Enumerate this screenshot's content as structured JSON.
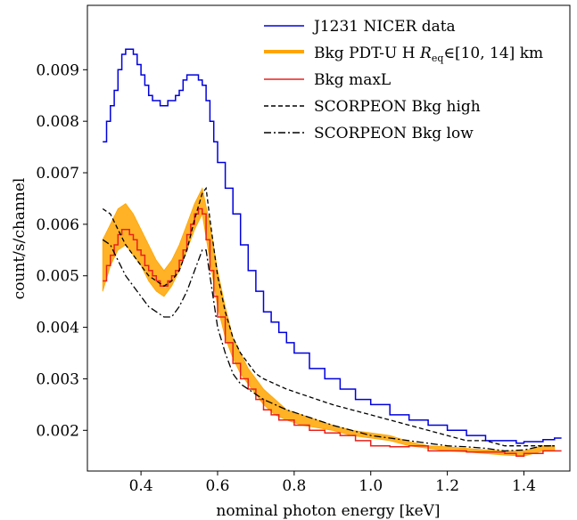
{
  "chart_data": {
    "type": "line",
    "xlabel": "nominal photon energy [keV]",
    "ylabel": "count/s/channel",
    "xlim": [
      0.26,
      1.52
    ],
    "ylim": [
      0.00121,
      0.01025
    ],
    "xticks": [
      0.4,
      0.6,
      0.8,
      1.0,
      1.2,
      1.4
    ],
    "xtick_labels": [
      "0.4",
      "0.6",
      "0.8",
      "1.0",
      "1.2",
      "1.4"
    ],
    "yticks": [
      0.002,
      0.003,
      0.004,
      0.005,
      0.006,
      0.007,
      0.008,
      0.009
    ],
    "ytick_labels": [
      "0.002",
      "0.003",
      "0.004",
      "0.005",
      "0.006",
      "0.007",
      "0.008",
      "0.009"
    ],
    "grid": false,
    "legend_position": "top-right",
    "series": [
      {
        "name": "J1231 NICER data",
        "color": "#0000dd",
        "style": "steps",
        "x": [
          0.3,
          0.31,
          0.32,
          0.33,
          0.34,
          0.35,
          0.36,
          0.37,
          0.38,
          0.39,
          0.4,
          0.41,
          0.42,
          0.43,
          0.44,
          0.45,
          0.46,
          0.47,
          0.48,
          0.49,
          0.5,
          0.51,
          0.52,
          0.53,
          0.54,
          0.55,
          0.56,
          0.57,
          0.58,
          0.59,
          0.6,
          0.62,
          0.64,
          0.66,
          0.68,
          0.7,
          0.72,
          0.74,
          0.76,
          0.78,
          0.8,
          0.84,
          0.88,
          0.92,
          0.96,
          1.0,
          1.05,
          1.1,
          1.15,
          1.2,
          1.25,
          1.3,
          1.35,
          1.38,
          1.4,
          1.45,
          1.48
        ],
        "y": [
          0.0076,
          0.008,
          0.0083,
          0.0086,
          0.009,
          0.0093,
          0.0094,
          0.0094,
          0.0093,
          0.0091,
          0.0089,
          0.0087,
          0.0085,
          0.0084,
          0.0084,
          0.0083,
          0.0083,
          0.0084,
          0.0084,
          0.0085,
          0.0086,
          0.0088,
          0.0089,
          0.0089,
          0.0089,
          0.0088,
          0.0087,
          0.0084,
          0.008,
          0.0076,
          0.0072,
          0.0067,
          0.0062,
          0.0056,
          0.0051,
          0.0047,
          0.0043,
          0.0041,
          0.0039,
          0.0037,
          0.0035,
          0.0032,
          0.003,
          0.0028,
          0.0026,
          0.0025,
          0.0023,
          0.0022,
          0.0021,
          0.002,
          0.0019,
          0.0018,
          0.0018,
          0.00175,
          0.00178,
          0.00182,
          0.00185
        ]
      },
      {
        "name": "Bkg PDT-U H R_eq∈[10, 14] km",
        "color": "#ffa500",
        "style": "band",
        "x": [
          0.3,
          0.32,
          0.34,
          0.36,
          0.38,
          0.4,
          0.42,
          0.44,
          0.46,
          0.48,
          0.5,
          0.52,
          0.54,
          0.56,
          0.58,
          0.6,
          0.62,
          0.64,
          0.66,
          0.68,
          0.7,
          0.72,
          0.75,
          0.78,
          0.82,
          0.86,
          0.9,
          0.95,
          1.0,
          1.05,
          1.1,
          1.15,
          1.2,
          1.25,
          1.3,
          1.35,
          1.4,
          1.45,
          1.48
        ],
        "y_low": [
          0.0047,
          0.0052,
          0.0055,
          0.0056,
          0.0054,
          0.0052,
          0.0049,
          0.0047,
          0.0046,
          0.0048,
          0.0051,
          0.0055,
          0.0059,
          0.0062,
          0.0053,
          0.0044,
          0.0038,
          0.0034,
          0.0031,
          0.0029,
          0.0027,
          0.0025,
          0.0023,
          0.0022,
          0.0021,
          0.00205,
          0.002,
          0.0019,
          0.00185,
          0.0018,
          0.0017,
          0.00165,
          0.0016,
          0.00158,
          0.00155,
          0.00152,
          0.0015,
          0.0016,
          0.0016
        ],
        "y_high": [
          0.0057,
          0.006,
          0.0063,
          0.0064,
          0.0062,
          0.0059,
          0.0056,
          0.0053,
          0.0051,
          0.0053,
          0.0056,
          0.006,
          0.0064,
          0.0067,
          0.006,
          0.0051,
          0.0044,
          0.0038,
          0.0035,
          0.0032,
          0.003,
          0.0028,
          0.0026,
          0.0024,
          0.0023,
          0.0022,
          0.0021,
          0.002,
          0.00195,
          0.0019,
          0.00178,
          0.0017,
          0.00168,
          0.00165,
          0.00162,
          0.0016,
          0.0016,
          0.0017,
          0.0017
        ]
      },
      {
        "name": "Bkg maxL",
        "color": "#e8211b",
        "style": "steps",
        "x": [
          0.3,
          0.31,
          0.32,
          0.33,
          0.34,
          0.35,
          0.36,
          0.37,
          0.38,
          0.39,
          0.4,
          0.41,
          0.42,
          0.43,
          0.44,
          0.45,
          0.46,
          0.47,
          0.48,
          0.49,
          0.5,
          0.51,
          0.52,
          0.53,
          0.54,
          0.55,
          0.56,
          0.57,
          0.58,
          0.59,
          0.6,
          0.62,
          0.64,
          0.66,
          0.68,
          0.7,
          0.72,
          0.74,
          0.76,
          0.78,
          0.8,
          0.84,
          0.88,
          0.92,
          0.96,
          1.0,
          1.05,
          1.1,
          1.15,
          1.2,
          1.25,
          1.3,
          1.35,
          1.38,
          1.4,
          1.45,
          1.48
        ],
        "y": [
          0.0049,
          0.0052,
          0.0054,
          0.0056,
          0.0058,
          0.0059,
          0.0059,
          0.0058,
          0.0057,
          0.0055,
          0.0054,
          0.0052,
          0.0051,
          0.005,
          0.0049,
          0.0048,
          0.0048,
          0.0049,
          0.005,
          0.0051,
          0.0053,
          0.0055,
          0.0058,
          0.006,
          0.0062,
          0.0063,
          0.0062,
          0.0057,
          0.0051,
          0.0046,
          0.0042,
          0.0037,
          0.0033,
          0.003,
          0.0028,
          0.0026,
          0.0024,
          0.0023,
          0.0022,
          0.0022,
          0.0021,
          0.002,
          0.00195,
          0.0019,
          0.0018,
          0.0017,
          0.00168,
          0.0017,
          0.0016,
          0.0016,
          0.00158,
          0.00158,
          0.00155,
          0.0015,
          0.00155,
          0.0016,
          0.0016
        ]
      },
      {
        "name": "SCORPEON Bkg high",
        "color": "#000000",
        "style": "dashed",
        "x": [
          0.3,
          0.32,
          0.34,
          0.36,
          0.38,
          0.4,
          0.42,
          0.44,
          0.46,
          0.48,
          0.5,
          0.52,
          0.54,
          0.56,
          0.57,
          0.58,
          0.6,
          0.62,
          0.64,
          0.66,
          0.68,
          0.7,
          0.72,
          0.75,
          0.78,
          0.82,
          0.86,
          0.9,
          0.95,
          1.0,
          1.05,
          1.1,
          1.15,
          1.2,
          1.25,
          1.3,
          1.35,
          1.4,
          1.45,
          1.48
        ],
        "y": [
          0.0063,
          0.0062,
          0.0059,
          0.0056,
          0.0054,
          0.0052,
          0.005,
          0.0049,
          0.0048,
          0.0049,
          0.0051,
          0.0055,
          0.0061,
          0.0066,
          0.0067,
          0.0061,
          0.005,
          0.0043,
          0.0038,
          0.0035,
          0.0033,
          0.0031,
          0.003,
          0.0029,
          0.0028,
          0.0027,
          0.0026,
          0.0025,
          0.0024,
          0.0023,
          0.0022,
          0.0021,
          0.002,
          0.0019,
          0.0018,
          0.0018,
          0.0017,
          0.0017,
          0.0017,
          0.0017
        ]
      },
      {
        "name": "SCORPEON Bkg low",
        "color": "#000000",
        "style": "dashdot",
        "x": [
          0.3,
          0.32,
          0.34,
          0.36,
          0.38,
          0.4,
          0.42,
          0.44,
          0.46,
          0.48,
          0.5,
          0.52,
          0.54,
          0.56,
          0.57,
          0.58,
          0.6,
          0.62,
          0.64,
          0.66,
          0.68,
          0.7,
          0.72,
          0.75,
          0.78,
          0.82,
          0.86,
          0.9,
          0.95,
          1.0,
          1.05,
          1.1,
          1.15,
          1.2,
          1.25,
          1.3,
          1.35,
          1.4,
          1.45,
          1.48
        ],
        "y": [
          0.0057,
          0.0056,
          0.0053,
          0.005,
          0.0048,
          0.0046,
          0.0044,
          0.0043,
          0.0042,
          0.0042,
          0.0044,
          0.0047,
          0.0051,
          0.0055,
          0.0055,
          0.005,
          0.004,
          0.0035,
          0.0031,
          0.0029,
          0.0028,
          0.0027,
          0.0026,
          0.0025,
          0.0024,
          0.0023,
          0.0022,
          0.0021,
          0.002,
          0.0019,
          0.00185,
          0.0018,
          0.00175,
          0.0017,
          0.00168,
          0.00165,
          0.0016,
          0.00162,
          0.0017,
          0.0017
        ]
      }
    ]
  }
}
